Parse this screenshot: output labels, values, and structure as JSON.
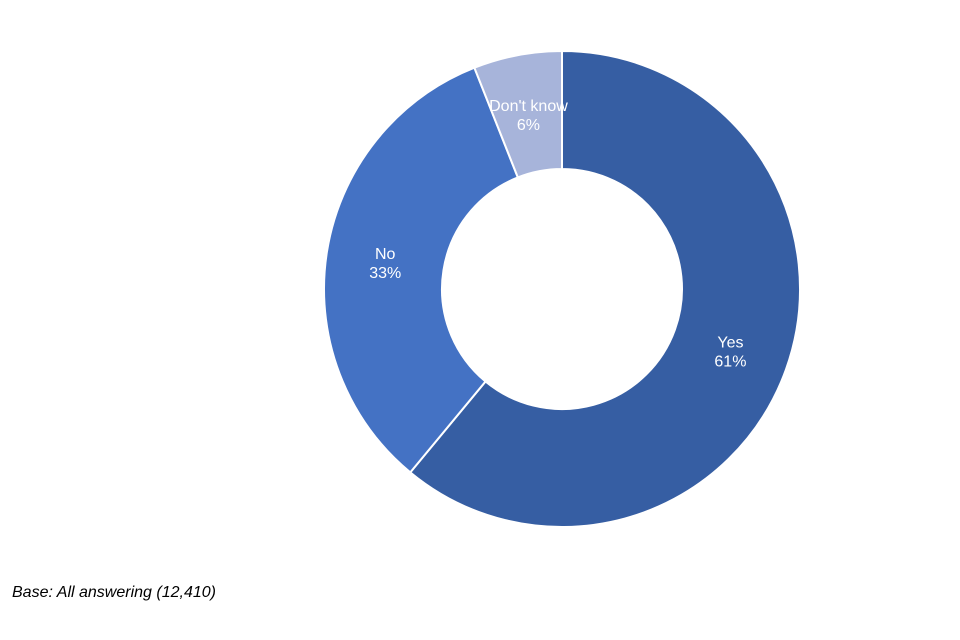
{
  "chart_data": {
    "type": "pie",
    "variant": "donut",
    "start_angle_deg": 0,
    "direction": "clockwise",
    "categories": [
      "Yes",
      "No",
      "Don't know"
    ],
    "values": [
      61,
      33,
      6
    ],
    "value_labels": [
      "61%",
      "33%",
      "6%"
    ],
    "unit": "%",
    "colors": [
      "#365EA3",
      "#4472C4",
      "#A7B4DA"
    ],
    "legend": "none",
    "data_labels": "inside slices, category and percent"
  },
  "footnote": "Base: All answering (12,410)"
}
